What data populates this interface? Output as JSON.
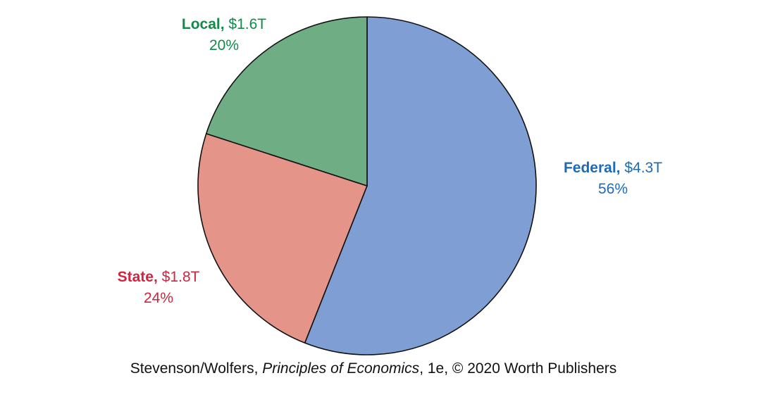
{
  "chart_data": {
    "type": "pie",
    "total_slices": 3,
    "slices": [
      {
        "name": "Federal",
        "amount": "$4.3T",
        "percent_label": "56%",
        "value": 56,
        "fill": "#7f9fd4",
        "text_color": "#1e6bb3"
      },
      {
        "name": "State",
        "amount": "$1.8T",
        "percent_label": "24%",
        "value": 24,
        "fill": "#e59489",
        "text_color": "#d1243f"
      },
      {
        "name": "Local",
        "amount": "$1.6T",
        "percent_label": "20%",
        "value": 20,
        "fill": "#6fae85",
        "text_color": "#14884a"
      }
    ],
    "start_angle": "12 o'clock",
    "direction": "clockwise",
    "outline_color": "#111111"
  },
  "credit": {
    "prefix": "Stevenson/Wolfers, ",
    "book": "Principles of Economics",
    "suffix": ", 1e, © 2020 Worth Publishers"
  }
}
